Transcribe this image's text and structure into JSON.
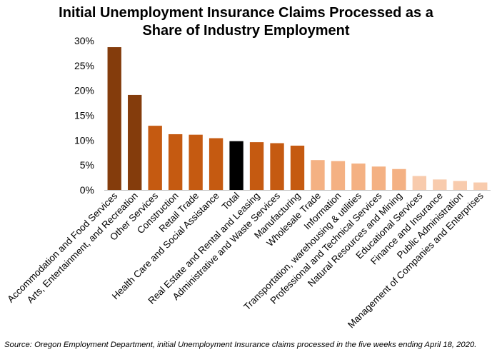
{
  "chart_data": {
    "type": "bar",
    "title_lines": [
      "Initial Unemployment Insurance Claims Processed as a",
      "Share of Industry Employment"
    ],
    "xlabel": "",
    "ylabel": "",
    "ylim": [
      0,
      30
    ],
    "yticks": [
      0,
      5,
      10,
      15,
      20,
      25,
      30
    ],
    "ytick_labels": [
      "0%",
      "5%",
      "10%",
      "15%",
      "20%",
      "25%",
      "30%"
    ],
    "grid": false,
    "categories": [
      "Accommodation and Food Services",
      "Arts, Entertainment, and Recreation",
      "Other Services",
      "Construction",
      "Retail Trade",
      "Health Care and Social Assistance",
      "Total",
      "Real Estate and Rental and Leasing",
      "Administrative and Waste Services",
      "Manufacturing",
      "Wholesale Trade",
      "Information",
      "Transportation, warehousing & utilities",
      "Professional and Technical Services",
      "Natural Resources and Mining",
      "Educational Services",
      "Finance and Insurance",
      "Public Administration",
      "Management of Companies and Enterprises"
    ],
    "values": [
      28.7,
      19.1,
      12.9,
      11.2,
      11.1,
      10.4,
      9.8,
      9.6,
      9.4,
      8.9,
      6.0,
      5.8,
      5.3,
      4.7,
      4.2,
      2.8,
      2.1,
      1.8,
      1.5
    ],
    "colors": [
      "#843c0c",
      "#843c0c",
      "#c55a11",
      "#c55a11",
      "#c55a11",
      "#c55a11",
      "#000000",
      "#c55a11",
      "#c55a11",
      "#c55a11",
      "#f4b183",
      "#f4b183",
      "#f4b183",
      "#f4b183",
      "#f4b183",
      "#f8cbad",
      "#f8cbad",
      "#f8cbad",
      "#f8cbad"
    ]
  },
  "source_note": "Source: Oregon Employment Department, initial Unemployment Insurance claims processed in the five weeks ending April 18, 2020."
}
